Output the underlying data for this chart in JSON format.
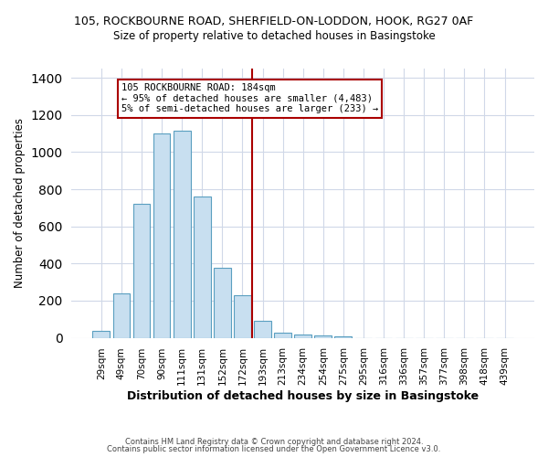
{
  "title_line1": "105, ROCKBOURNE ROAD, SHERFIELD-ON-LODDON, HOOK, RG27 0AF",
  "title_line2": "Size of property relative to detached houses in Basingstoke",
  "xlabel": "Distribution of detached houses by size in Basingstoke",
  "ylabel": "Number of detached properties",
  "bar_labels": [
    "29sqm",
    "49sqm",
    "70sqm",
    "90sqm",
    "111sqm",
    "131sqm",
    "152sqm",
    "172sqm",
    "193sqm",
    "213sqm",
    "234sqm",
    "254sqm",
    "275sqm",
    "295sqm",
    "316sqm",
    "336sqm",
    "357sqm",
    "377sqm",
    "398sqm",
    "418sqm",
    "439sqm"
  ],
  "bar_heights": [
    35,
    240,
    720,
    1100,
    1115,
    760,
    375,
    230,
    90,
    30,
    20,
    15,
    10,
    0,
    0,
    0,
    0,
    0,
    0,
    0,
    0
  ],
  "bar_color": "#c8dff0",
  "bar_edge_color": "#5a9fc0",
  "vline_x_index": 8,
  "vline_color": "#aa0000",
  "annotation_text": "105 ROCKBOURNE ROAD: 184sqm\n← 95% of detached houses are smaller (4,483)\n5% of semi-detached houses are larger (233) →",
  "annotation_box_color": "#ffffff",
  "annotation_box_edge_color": "#aa0000",
  "ylim": [
    0,
    1450
  ],
  "yticks": [
    0,
    200,
    400,
    600,
    800,
    1000,
    1200,
    1400
  ],
  "footer_line1": "Contains HM Land Registry data © Crown copyright and database right 2024.",
  "footer_line2": "Contains public sector information licensed under the Open Government Licence v3.0.",
  "background_color": "#ffffff",
  "grid_color": "#d0d8e8"
}
